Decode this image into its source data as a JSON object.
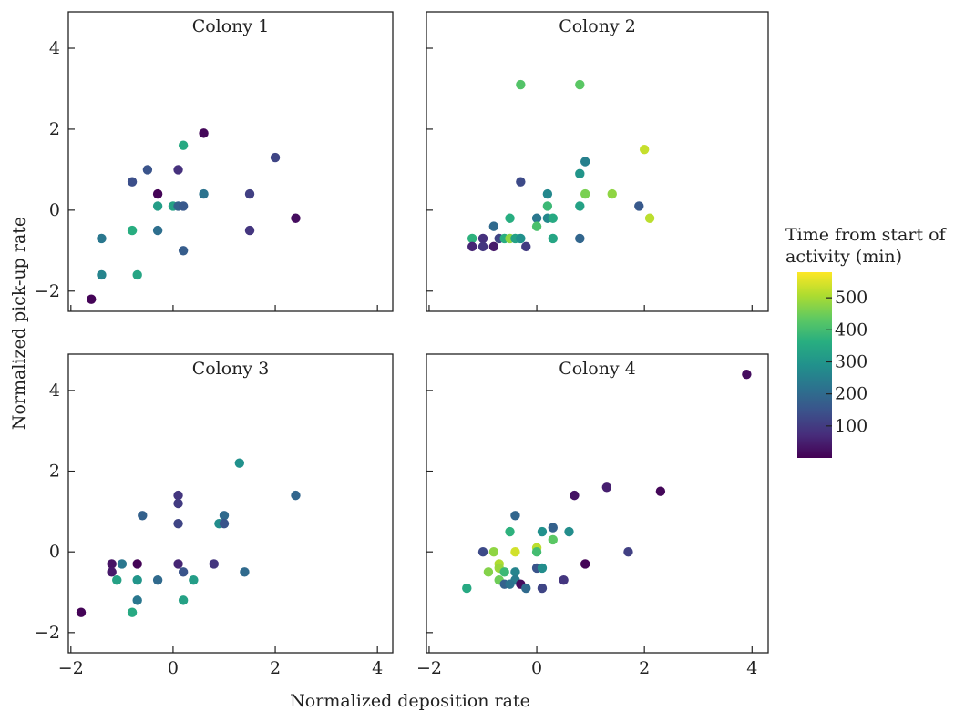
{
  "chart_data": {
    "type": "scatter",
    "xlabel": "Normalized deposition rate",
    "ylabel": "Normalized pick-up rate",
    "xlim": [
      -2.05,
      4.3
    ],
    "ylim": [
      -2.5,
      4.9
    ],
    "x_ticks": [
      -2,
      0,
      2,
      4
    ],
    "y_ticks": [
      -2,
      0,
      2,
      4
    ],
    "colorbar": {
      "title_lines": [
        "Time from start of",
        "activity (min)"
      ],
      "range": [
        0,
        580
      ],
      "ticks": [
        100,
        200,
        300,
        400,
        500
      ]
    },
    "panels": [
      {
        "title": "Colony 1",
        "points": [
          {
            "x": 0.6,
            "y": 1.9,
            "t": 10
          },
          {
            "x": 0.2,
            "y": 1.6,
            "t": 350
          },
          {
            "x": 2.0,
            "y": 1.3,
            "t": 120
          },
          {
            "x": -0.5,
            "y": 1.0,
            "t": 150
          },
          {
            "x": 0.1,
            "y": 1.0,
            "t": 80
          },
          {
            "x": -0.8,
            "y": 0.7,
            "t": 140
          },
          {
            "x": -0.3,
            "y": 0.4,
            "t": 5
          },
          {
            "x": 0.6,
            "y": 0.4,
            "t": 220
          },
          {
            "x": 1.5,
            "y": 0.4,
            "t": 110
          },
          {
            "x": -0.3,
            "y": 0.1,
            "t": 320
          },
          {
            "x": 0.0,
            "y": 0.1,
            "t": 330
          },
          {
            "x": 0.1,
            "y": 0.1,
            "t": 180
          },
          {
            "x": 0.2,
            "y": 0.1,
            "t": 160
          },
          {
            "x": -0.8,
            "y": -0.5,
            "t": 360
          },
          {
            "x": -0.3,
            "y": -0.5,
            "t": 210
          },
          {
            "x": 1.5,
            "y": -0.5,
            "t": 90
          },
          {
            "x": 2.4,
            "y": -0.2,
            "t": 20
          },
          {
            "x": -1.4,
            "y": -0.7,
            "t": 230
          },
          {
            "x": 0.2,
            "y": -1.0,
            "t": 170
          },
          {
            "x": -1.4,
            "y": -1.6,
            "t": 260
          },
          {
            "x": -0.7,
            "y": -1.6,
            "t": 340
          },
          {
            "x": -1.6,
            "y": -2.2,
            "t": 5
          }
        ]
      },
      {
        "title": "Colony 2",
        "points": [
          {
            "x": -0.3,
            "y": 3.1,
            "t": 420
          },
          {
            "x": 0.8,
            "y": 3.1,
            "t": 430
          },
          {
            "x": 2.0,
            "y": 1.5,
            "t": 530
          },
          {
            "x": 0.9,
            "y": 1.2,
            "t": 250
          },
          {
            "x": 0.8,
            "y": 0.9,
            "t": 300
          },
          {
            "x": -0.3,
            "y": 0.7,
            "t": 130
          },
          {
            "x": 0.2,
            "y": 0.4,
            "t": 270
          },
          {
            "x": 0.9,
            "y": 0.4,
            "t": 460
          },
          {
            "x": 1.4,
            "y": 0.4,
            "t": 480
          },
          {
            "x": 0.2,
            "y": 0.1,
            "t": 390
          },
          {
            "x": 0.8,
            "y": 0.1,
            "t": 330
          },
          {
            "x": 1.9,
            "y": 0.1,
            "t": 160
          },
          {
            "x": -0.5,
            "y": -0.2,
            "t": 360
          },
          {
            "x": 0.0,
            "y": -0.2,
            "t": 230
          },
          {
            "x": 0.2,
            "y": -0.2,
            "t": 270
          },
          {
            "x": 0.3,
            "y": -0.2,
            "t": 350
          },
          {
            "x": 2.1,
            "y": -0.2,
            "t": 520
          },
          {
            "x": -0.8,
            "y": -0.4,
            "t": 200
          },
          {
            "x": 0.0,
            "y": -0.4,
            "t": 410
          },
          {
            "x": -1.2,
            "y": -0.7,
            "t": 370
          },
          {
            "x": -1.0,
            "y": -0.7,
            "t": 80
          },
          {
            "x": -0.7,
            "y": -0.7,
            "t": 120
          },
          {
            "x": -0.6,
            "y": -0.7,
            "t": 360
          },
          {
            "x": -0.5,
            "y": -0.7,
            "t": 480
          },
          {
            "x": -0.4,
            "y": -0.7,
            "t": 330
          },
          {
            "x": -0.3,
            "y": -0.7,
            "t": 290
          },
          {
            "x": 0.3,
            "y": -0.7,
            "t": 340
          },
          {
            "x": 0.8,
            "y": -0.7,
            "t": 190
          },
          {
            "x": -1.2,
            "y": -0.9,
            "t": 60
          },
          {
            "x": -1.0,
            "y": -0.9,
            "t": 90
          },
          {
            "x": -0.8,
            "y": -0.9,
            "t": 40
          },
          {
            "x": -0.2,
            "y": -0.9,
            "t": 100
          }
        ]
      },
      {
        "title": "Colony 3",
        "points": [
          {
            "x": 1.3,
            "y": 2.2,
            "t": 290
          },
          {
            "x": 2.4,
            "y": 1.4,
            "t": 190
          },
          {
            "x": 0.1,
            "y": 1.4,
            "t": 90
          },
          {
            "x": 0.1,
            "y": 1.2,
            "t": 100
          },
          {
            "x": -0.6,
            "y": 0.9,
            "t": 180
          },
          {
            "x": 1.0,
            "y": 0.9,
            "t": 200
          },
          {
            "x": 0.1,
            "y": 0.7,
            "t": 120
          },
          {
            "x": 0.9,
            "y": 0.7,
            "t": 280
          },
          {
            "x": 1.0,
            "y": 0.7,
            "t": 150
          },
          {
            "x": -1.2,
            "y": -0.3,
            "t": 30
          },
          {
            "x": -0.7,
            "y": -0.3,
            "t": 5
          },
          {
            "x": -1.0,
            "y": -0.3,
            "t": 230
          },
          {
            "x": 0.8,
            "y": -0.3,
            "t": 90
          },
          {
            "x": 0.1,
            "y": -0.3,
            "t": 60
          },
          {
            "x": -1.2,
            "y": -0.5,
            "t": 40
          },
          {
            "x": 0.2,
            "y": -0.5,
            "t": 150
          },
          {
            "x": 1.4,
            "y": -0.5,
            "t": 200
          },
          {
            "x": -1.1,
            "y": -0.7,
            "t": 330
          },
          {
            "x": -0.7,
            "y": -0.7,
            "t": 300
          },
          {
            "x": -0.3,
            "y": -0.7,
            "t": 200
          },
          {
            "x": 0.4,
            "y": -0.7,
            "t": 320
          },
          {
            "x": -0.7,
            "y": -1.2,
            "t": 230
          },
          {
            "x": 0.2,
            "y": -1.2,
            "t": 330
          },
          {
            "x": -0.8,
            "y": -1.5,
            "t": 350
          },
          {
            "x": -1.8,
            "y": -1.5,
            "t": 5
          }
        ]
      },
      {
        "title": "Colony 4",
        "points": [
          {
            "x": 3.9,
            "y": 4.4,
            "t": 20
          },
          {
            "x": 1.3,
            "y": 1.6,
            "t": 50
          },
          {
            "x": 2.3,
            "y": 1.5,
            "t": 10
          },
          {
            "x": 0.7,
            "y": 1.4,
            "t": 30
          },
          {
            "x": -0.4,
            "y": 0.9,
            "t": 190
          },
          {
            "x": 0.3,
            "y": 0.6,
            "t": 180
          },
          {
            "x": -0.5,
            "y": 0.5,
            "t": 370
          },
          {
            "x": 0.1,
            "y": 0.5,
            "t": 290
          },
          {
            "x": 0.6,
            "y": 0.5,
            "t": 280
          },
          {
            "x": 0.3,
            "y": 0.3,
            "t": 430
          },
          {
            "x": 0.0,
            "y": 0.1,
            "t": 520
          },
          {
            "x": -1.0,
            "y": 0.0,
            "t": 130
          },
          {
            "x": -0.8,
            "y": 0.0,
            "t": 480
          },
          {
            "x": -0.4,
            "y": 0.0,
            "t": 540
          },
          {
            "x": 0.0,
            "y": 0.0,
            "t": 400
          },
          {
            "x": 1.7,
            "y": 0.0,
            "t": 110
          },
          {
            "x": -0.7,
            "y": -0.3,
            "t": 510
          },
          {
            "x": 0.9,
            "y": -0.3,
            "t": 5
          },
          {
            "x": -0.7,
            "y": -0.4,
            "t": 490
          },
          {
            "x": 0.0,
            "y": -0.4,
            "t": 150
          },
          {
            "x": 0.1,
            "y": -0.4,
            "t": 280
          },
          {
            "x": -0.9,
            "y": -0.5,
            "t": 470
          },
          {
            "x": -0.6,
            "y": -0.5,
            "t": 390
          },
          {
            "x": -0.4,
            "y": -0.5,
            "t": 260
          },
          {
            "x": -0.7,
            "y": -0.7,
            "t": 450
          },
          {
            "x": -0.4,
            "y": -0.7,
            "t": 240
          },
          {
            "x": 0.5,
            "y": -0.7,
            "t": 90
          },
          {
            "x": -0.6,
            "y": -0.8,
            "t": 180
          },
          {
            "x": -0.5,
            "y": -0.8,
            "t": 220
          },
          {
            "x": -0.3,
            "y": -0.8,
            "t": 20
          },
          {
            "x": -1.3,
            "y": -0.9,
            "t": 350
          },
          {
            "x": -0.2,
            "y": -0.9,
            "t": 200
          },
          {
            "x": 0.1,
            "y": -0.9,
            "t": 120
          }
        ]
      }
    ]
  }
}
